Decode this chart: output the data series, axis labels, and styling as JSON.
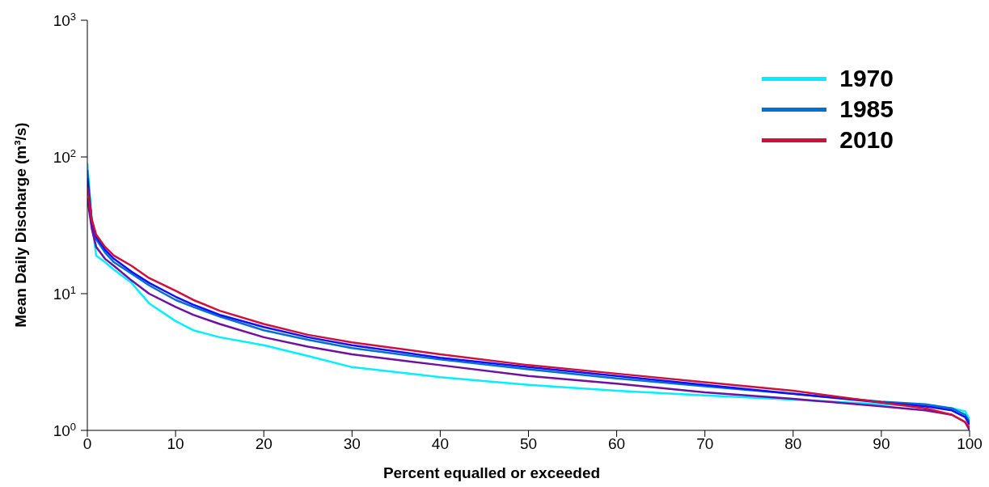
{
  "chart_data": {
    "type": "line",
    "xlabel": "Percent equalled or exceeded",
    "ylabel": "Mean Daily Discharge (m³/s)",
    "x": [
      0,
      0.5,
      1,
      2,
      3,
      5,
      7,
      10,
      12,
      15,
      20,
      25,
      30,
      40,
      50,
      60,
      70,
      80,
      90,
      95,
      98,
      99.5,
      100
    ],
    "series": [
      {
        "name": "1970",
        "color": "#00f0ff",
        "values": [
          90,
          35,
          19,
          17,
          15,
          12,
          8.5,
          6.3,
          5.4,
          4.8,
          4.2,
          3.5,
          2.9,
          2.45,
          2.15,
          1.95,
          1.8,
          1.68,
          1.55,
          1.5,
          1.45,
          1.38,
          1.2
        ]
      },
      {
        "name": "1985",
        "color": "#0070d0",
        "values": [
          80,
          33,
          25,
          20,
          17,
          14,
          11.5,
          9,
          8,
          6.8,
          5.4,
          4.6,
          4.0,
          3.3,
          2.8,
          2.4,
          2.1,
          1.85,
          1.62,
          1.55,
          1.45,
          1.3,
          1.15
        ]
      },
      {
        "color": "#1010ff",
        "values": [
          70,
          34,
          26,
          21,
          18,
          14.5,
          12,
          9.5,
          8.3,
          7,
          5.7,
          4.8,
          4.2,
          3.4,
          2.9,
          2.5,
          2.15,
          1.85,
          1.6,
          1.5,
          1.4,
          1.25,
          1.1
        ]
      },
      {
        "color": "#7010a0",
        "values": [
          50,
          30,
          22,
          18,
          16,
          12.5,
          10,
          8,
          7,
          6,
          4.8,
          4.1,
          3.6,
          3.0,
          2.5,
          2.2,
          1.9,
          1.7,
          1.5,
          1.4,
          1.3,
          1.15,
          1.0
        ]
      },
      {
        "name": "2010",
        "color": "#d0103a",
        "values": [
          60,
          35,
          27,
          22,
          19,
          16,
          13,
          10.5,
          9,
          7.5,
          6,
          5,
          4.4,
          3.6,
          3,
          2.6,
          2.25,
          1.95,
          1.6,
          1.45,
          1.3,
          1.15,
          1.05
        ]
      }
    ],
    "xlim": [
      0,
      100
    ],
    "xticks": [
      0,
      10,
      20,
      30,
      40,
      50,
      60,
      70,
      80,
      90,
      100
    ],
    "log": true,
    "ylim": [
      1,
      1000
    ],
    "yticks": [
      {
        "value": 1,
        "label": "10$^{0}$"
      },
      {
        "value": 10,
        "label": "10$^{1}$"
      },
      {
        "value": 100,
        "label": "10$^{2}$"
      },
      {
        "value": 1000,
        "label": "10$^{3}$"
      }
    ],
    "grid": false,
    "legend": "top right",
    "marker": "none",
    "line_style": "solid"
  }
}
